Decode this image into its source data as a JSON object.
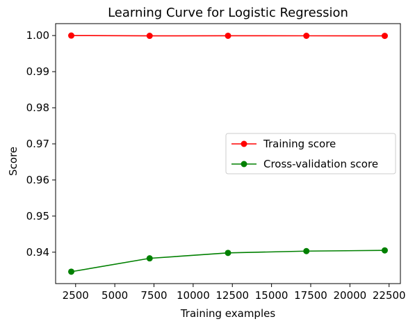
{
  "chart_data": {
    "type": "line",
    "title": "Learning Curve for Logistic Regression",
    "xlabel": "Training examples",
    "ylabel": "Score",
    "x": [
      2223,
      7223,
      12223,
      17223,
      22223
    ],
    "xticks": [
      2500,
      5000,
      7500,
      10000,
      12500,
      15000,
      17500,
      20000,
      22500
    ],
    "yticks": [
      0.94,
      0.95,
      0.96,
      0.97,
      0.98,
      0.99,
      1.0
    ],
    "ytick_labels": [
      "0.94",
      "0.95",
      "0.96",
      "0.97",
      "0.98",
      "0.99",
      "1.00"
    ],
    "xlim": [
      1224,
      23222
    ],
    "ylim": [
      0.9313,
      1.0033
    ],
    "grid": false,
    "legend_position": "center-right",
    "series": [
      {
        "name": "Training score",
        "color": "#ff0000",
        "values": [
          1.0,
          0.99992,
          0.99994,
          0.99993,
          0.99991
        ]
      },
      {
        "name": "Cross-validation score",
        "color": "#008000",
        "values": [
          0.9346,
          0.9383,
          0.9398,
          0.9403,
          0.9405
        ]
      }
    ]
  }
}
